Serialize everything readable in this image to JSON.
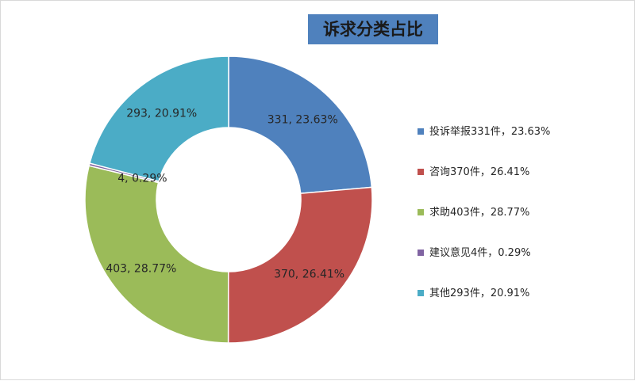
{
  "chart_data": {
    "type": "pie",
    "variant": "donut",
    "title": "诉求分类占比",
    "legend_position": "right",
    "series": [
      {
        "name": "投诉举报331件，23.63%",
        "value": 331,
        "percent": 23.63,
        "label": "331, 23.63%",
        "color": "#4f81bd"
      },
      {
        "name": "咨询370件，26.41%",
        "value": 370,
        "percent": 26.41,
        "label": "370, 26.41%",
        "color": "#c0504d"
      },
      {
        "name": "求助403件，28.77%",
        "value": 403,
        "percent": 28.77,
        "label": "403, 28.77%",
        "color": "#9bbb59"
      },
      {
        "name": "建议意见4件，0.29%",
        "value": 4,
        "percent": 0.29,
        "label": "4, 0.29%",
        "color": "#8064a2"
      },
      {
        "name": "其他293件，20.91%",
        "value": 293,
        "percent": 20.91,
        "label": "293, 20.91%",
        "color": "#4bacc6"
      }
    ]
  }
}
